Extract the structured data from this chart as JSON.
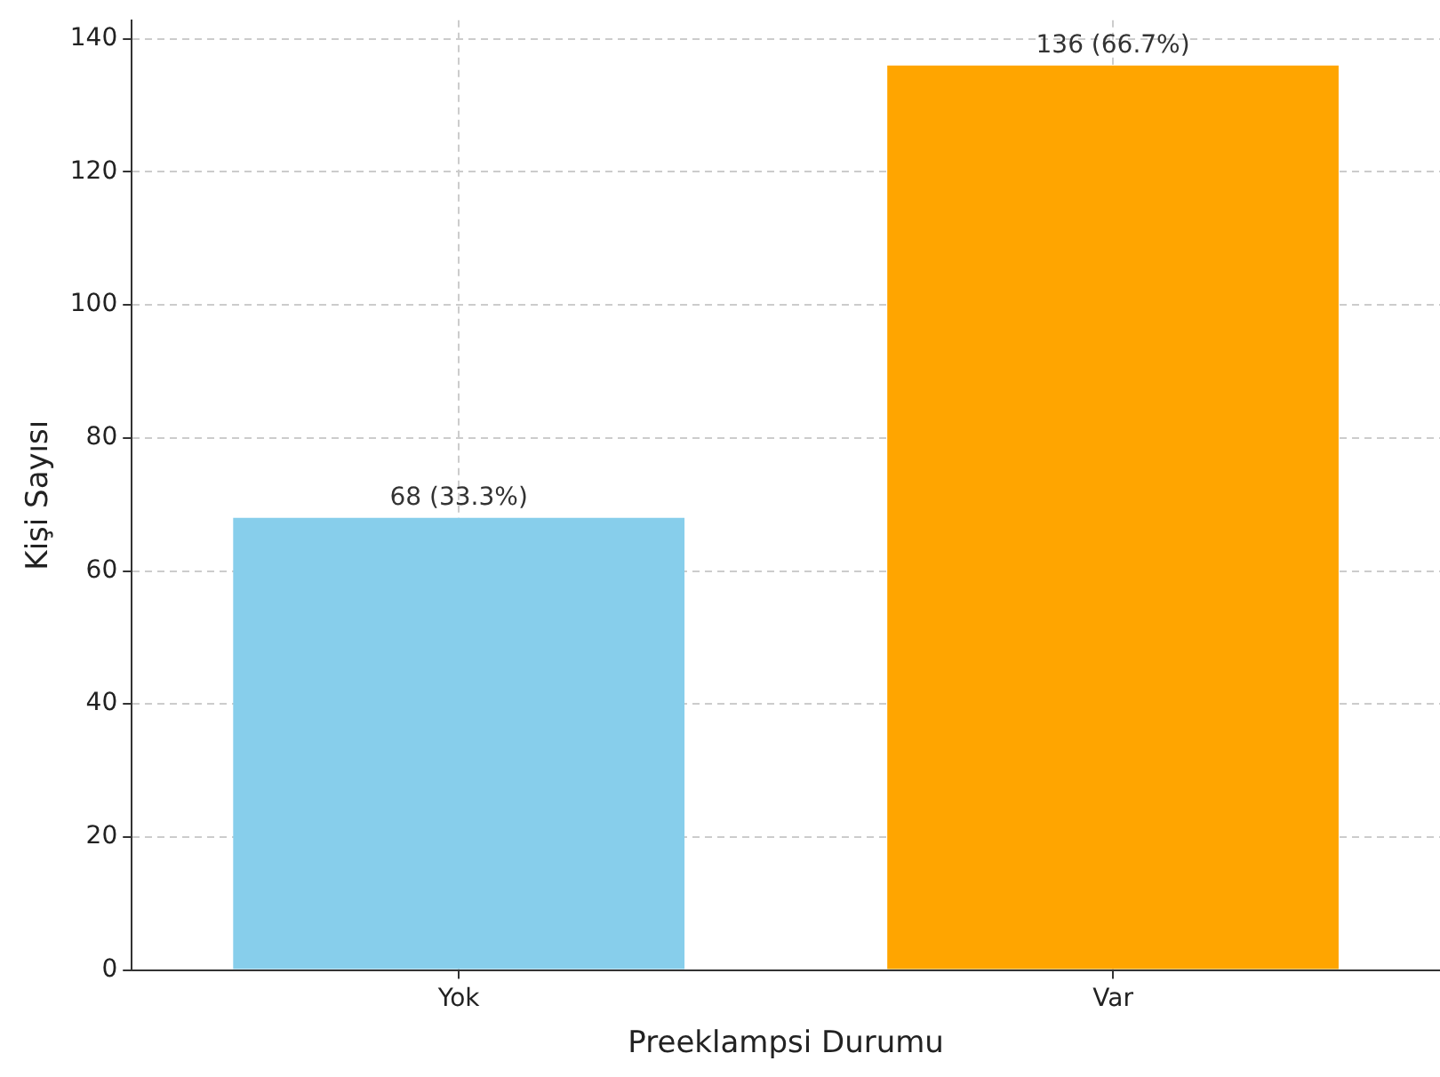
{
  "chart_data": {
    "type": "bar",
    "xlabel": "Preeklampsi Durumu",
    "ylabel": "Kişi Sayısı",
    "categories": [
      "Yok",
      "Var"
    ],
    "values": [
      68,
      136
    ],
    "colors": [
      "#87ceeb",
      "#ffa500"
    ],
    "value_labels": [
      "68 (33.3%)",
      "136 (66.7%)"
    ],
    "ylim": [
      0,
      142.8
    ],
    "yticks": [
      0,
      20,
      40,
      60,
      80,
      100,
      120,
      140
    ],
    "grid": true,
    "line_style": "dashed",
    "legend": false
  }
}
